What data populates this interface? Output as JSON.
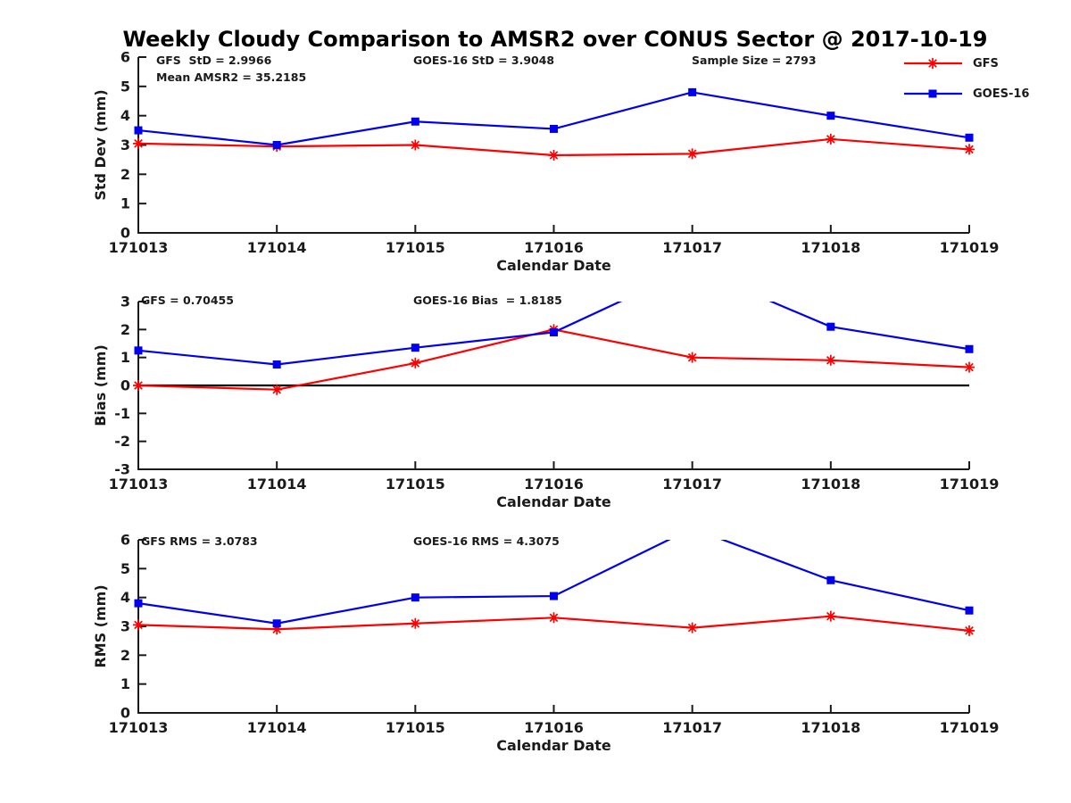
{
  "title": "Weekly Cloudy Comparison to AMSR2 over CONUS Sector @ 2017-10-19",
  "colors": {
    "gfs": "#fe0000",
    "goes16": "#0000ee",
    "axis": "#1a1a1a",
    "zero_line": "#000000"
  },
  "legend": {
    "items": [
      {
        "label": "GFS",
        "color": "#fe0000",
        "marker": "asterisk"
      },
      {
        "label": "GOES-16",
        "color": "#0000ee",
        "marker": "square"
      }
    ]
  },
  "chart_data": [
    {
      "type": "line",
      "ylabel": "Std Dev (mm)",
      "xlabel": "Calendar Date",
      "ylim": [
        0,
        6
      ],
      "yticks": [
        0,
        1,
        2,
        3,
        4,
        5,
        6
      ],
      "grid": false,
      "legend_position": "outside-top-right",
      "categories": [
        "171013",
        "171014",
        "171015",
        "171016",
        "171017",
        "171018",
        "171019"
      ],
      "series": [
        {
          "name": "GFS",
          "color": "#fe0000",
          "marker": "asterisk",
          "values": [
            3.05,
            2.95,
            3.0,
            2.65,
            2.7,
            3.2,
            2.85
          ]
        },
        {
          "name": "GOES-16",
          "color": "#0000ee",
          "marker": "square",
          "values": [
            3.5,
            3.0,
            3.8,
            3.55,
            4.8,
            4.0,
            3.25
          ]
        }
      ],
      "annotations": [
        {
          "text": "GFS  StD = 2.9966"
        },
        {
          "text": "Mean AMSR2 = 35.2185"
        },
        {
          "text": "GOES-16 StD = 3.9048"
        },
        {
          "text": "Sample Size = 2793"
        }
      ]
    },
    {
      "type": "line",
      "ylabel": "Bias (mm)",
      "xlabel": "Calendar Date",
      "ylim": [
        -3,
        3
      ],
      "yticks": [
        -3,
        -2,
        -1,
        0,
        1,
        2,
        3
      ],
      "grid": false,
      "zero_line": true,
      "categories": [
        "171013",
        "171014",
        "171015",
        "171016",
        "171017",
        "171018",
        "171019"
      ],
      "series": [
        {
          "name": "GFS",
          "color": "#fe0000",
          "marker": "asterisk",
          "values": [
            0.0,
            -0.15,
            0.8,
            2.0,
            1.0,
            0.9,
            0.65
          ]
        },
        {
          "name": "GOES-16",
          "color": "#0000ee",
          "marker": "square",
          "values": [
            1.25,
            0.75,
            1.35,
            1.9,
            4.2,
            2.1,
            1.3
          ],
          "note": "value at 171017 exceeds axis top and is clipped in the plot"
        }
      ],
      "annotations": [
        {
          "text": "GFS = 0.70455"
        },
        {
          "text": "GOES-16 Bias  = 1.8185"
        }
      ]
    },
    {
      "type": "line",
      "ylabel": "RMS (mm)",
      "xlabel": "Calendar Date",
      "ylim": [
        0,
        6
      ],
      "yticks": [
        0,
        1,
        2,
        3,
        4,
        5,
        6
      ],
      "grid": false,
      "categories": [
        "171013",
        "171014",
        "171015",
        "171016",
        "171017",
        "171018",
        "171019"
      ],
      "series": [
        {
          "name": "GFS",
          "color": "#fe0000",
          "marker": "asterisk",
          "values": [
            3.05,
            2.9,
            3.1,
            3.3,
            2.95,
            3.35,
            2.85
          ]
        },
        {
          "name": "GOES-16",
          "color": "#0000ee",
          "marker": "square",
          "values": [
            3.8,
            3.1,
            4.0,
            4.05,
            6.4,
            4.6,
            3.55
          ],
          "note": "value at 171017 exceeds axis top and is clipped in the plot"
        }
      ],
      "annotations": [
        {
          "text": "GFS RMS = 3.0783"
        },
        {
          "text": "GOES-16 RMS = 4.3075"
        }
      ]
    }
  ]
}
